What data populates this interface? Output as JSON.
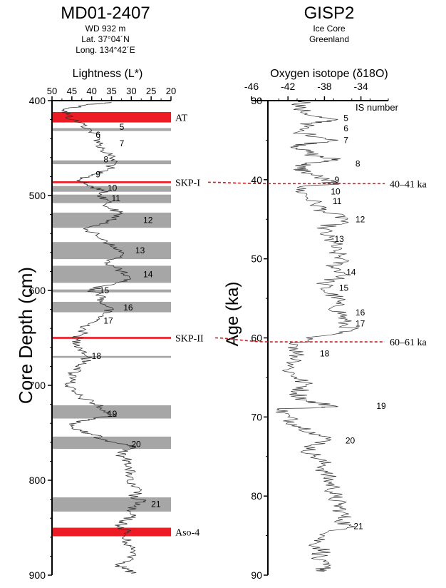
{
  "chart_data": [
    {
      "type": "line",
      "panel": "left",
      "title": "MD01-2407",
      "subtitle_lines": [
        "WD 932 m",
        "Lat. 37°04´N",
        "Long. 134°42´E"
      ],
      "xlabel": "Lightness (L*)",
      "ylabel": "Core Depth (cm)",
      "xlim": [
        50,
        20
      ],
      "ylim": [
        400,
        900
      ],
      "xticks": [
        "50",
        "45",
        "40",
        "35",
        "30",
        "25",
        "20"
      ],
      "yticks": [
        "400",
        "500",
        "600",
        "700",
        "800",
        "900"
      ],
      "ytick_values": [
        400,
        500,
        600,
        700,
        800,
        900
      ],
      "series": [
        {
          "name": "Lightness",
          "depth": [
            402,
            405,
            410,
            415,
            420,
            425,
            432,
            440,
            446,
            452,
            460,
            466,
            472,
            478,
            483,
            487,
            491,
            494,
            500,
            504,
            512,
            518,
            524,
            530,
            536,
            542,
            548,
            554,
            560,
            566,
            572,
            578,
            584,
            590,
            596,
            600,
            606,
            612,
            618,
            624,
            630,
            636,
            642,
            648,
            652,
            658,
            664,
            670,
            676,
            682,
            688,
            694,
            700,
            706,
            712,
            718,
            722,
            728,
            732,
            736,
            740,
            744,
            748,
            752,
            758,
            762,
            766,
            770,
            776,
            782,
            788,
            794,
            800,
            806,
            812,
            818,
            822,
            826,
            832,
            838,
            844,
            848,
            854,
            860,
            866,
            872,
            878,
            884,
            890,
            894,
            898
          ],
          "lightness": [
            35,
            42,
            47,
            46,
            45,
            42,
            40,
            38,
            38,
            37,
            35,
            34,
            36,
            40,
            43,
            42,
            40,
            37,
            38,
            36,
            36,
            33,
            34,
            38,
            41,
            39,
            36,
            35,
            32,
            34,
            36,
            33,
            32,
            31,
            38,
            40,
            37,
            38,
            35,
            37,
            38,
            41,
            42,
            43,
            44,
            43,
            42,
            41,
            42,
            43,
            45,
            44,
            46,
            45,
            43,
            40,
            38,
            37,
            34,
            41,
            44,
            45,
            43,
            40,
            36,
            31,
            29,
            33,
            32,
            30,
            31,
            30,
            31,
            30,
            28,
            30,
            27,
            29,
            31,
            30,
            32,
            33,
            31,
            32,
            31,
            30,
            29,
            30,
            33,
            31,
            30
          ]
        }
      ],
      "gray_bands": [
        {
          "top": 429,
          "bottom": 432
        },
        {
          "top": 463,
          "bottom": 467
        },
        {
          "top": 490,
          "bottom": 496
        },
        {
          "top": 499,
          "bottom": 508
        },
        {
          "top": 518,
          "bottom": 534
        },
        {
          "top": 549,
          "bottom": 567
        },
        {
          "top": 574,
          "bottom": 592
        },
        {
          "top": 599,
          "bottom": 602
        },
        {
          "top": 612,
          "bottom": 623
        },
        {
          "top": 669,
          "bottom": 671
        },
        {
          "top": 721,
          "bottom": 735
        },
        {
          "top": 754,
          "bottom": 767
        },
        {
          "top": 818,
          "bottom": 833
        }
      ],
      "red_bands": [
        {
          "label": "AT",
          "top": 412,
          "bottom": 423
        },
        {
          "label": "SKP-I",
          "top": 485,
          "bottom": 487
        },
        {
          "label": "SKP-II",
          "top": 649,
          "bottom": 651
        },
        {
          "label": "Aso-4",
          "top": 850,
          "bottom": 859
        }
      ],
      "is_labels": [
        {
          "n": "5",
          "depth": 428,
          "x": 33
        },
        {
          "n": "6",
          "depth": 436,
          "x": 39
        },
        {
          "n": "7",
          "depth": 445,
          "x": 33
        },
        {
          "n": "8",
          "depth": 462,
          "x": 37
        },
        {
          "n": "9",
          "depth": 478,
          "x": 39
        },
        {
          "n": "10",
          "depth": 492,
          "x": 36
        },
        {
          "n": "11",
          "depth": 503,
          "x": 35
        },
        {
          "n": "12",
          "depth": 526,
          "x": 27
        },
        {
          "n": "13",
          "depth": 558,
          "x": 29
        },
        {
          "n": "14",
          "depth": 583,
          "x": 27
        },
        {
          "n": "15",
          "depth": 600,
          "x": 38
        },
        {
          "n": "16",
          "depth": 618,
          "x": 32
        },
        {
          "n": "17",
          "depth": 632,
          "x": 37
        },
        {
          "n": "18",
          "depth": 669,
          "x": 40
        },
        {
          "n": "19",
          "depth": 730,
          "x": 36
        },
        {
          "n": "20",
          "depth": 762,
          "x": 30
        },
        {
          "n": "21",
          "depth": 825,
          "x": 25
        }
      ]
    },
    {
      "type": "line",
      "panel": "right",
      "title": "GISP2",
      "subtitle_lines": [
        "Ice Core",
        "Greenland"
      ],
      "xlabel": "Oxygen isotope (δ18O)",
      "ylabel": "Age (ka)",
      "axis_annotation": "IS number",
      "xlim": [
        -46,
        -31
      ],
      "ylim": [
        30,
        90
      ],
      "xticks": [
        "-46",
        "-42",
        "-38",
        "-34"
      ],
      "xtick_values": [
        -46,
        -42,
        -38,
        -34
      ],
      "yticks": [
        "30",
        "40",
        "50",
        "60",
        "70",
        "80",
        "90"
      ],
      "ytick_values": [
        30,
        40,
        50,
        60,
        70,
        80,
        90
      ],
      "series": [
        {
          "name": "δ18O",
          "age": [
            30,
            31,
            32,
            32.5,
            33,
            34,
            35,
            35.5,
            36,
            37,
            37.5,
            38,
            38.5,
            39,
            40,
            40.5,
            41,
            42,
            43,
            44,
            45,
            46,
            47,
            48,
            49,
            50,
            51,
            52,
            53,
            54,
            55,
            56,
            57,
            58,
            59,
            60,
            61,
            62,
            63,
            64,
            65,
            66,
            67,
            68,
            68.7,
            69,
            70,
            71,
            72,
            73,
            74,
            75,
            76,
            77,
            78,
            79,
            80,
            81,
            82,
            83,
            84,
            85,
            86,
            87,
            88,
            89,
            89.5
          ],
          "d18O": [
            -40,
            -41,
            -39,
            -37,
            -40,
            -41,
            -36.5,
            -40,
            -41,
            -39,
            -36.5,
            -40,
            -41,
            -40,
            -38,
            -37,
            -41,
            -40,
            -39,
            -38,
            -35.5,
            -38,
            -38,
            -37,
            -37,
            -36,
            -37,
            -35.5,
            -38,
            -38,
            -36.5,
            -37,
            -36,
            -36,
            -35,
            -40,
            -41,
            -41,
            -41,
            -42,
            -41,
            -40,
            -41,
            -40,
            -36.5,
            -43,
            -42,
            -41,
            -39,
            -37.5,
            -40,
            -39,
            -38,
            -38,
            -37.5,
            -37,
            -37,
            -36.5,
            -36,
            -36,
            -35.5,
            -38,
            -39,
            -38,
            -39,
            -38,
            -38
          ]
        }
      ],
      "is_labels": [
        {
          "n": "5",
          "age": 32.2,
          "x": -35.9
        },
        {
          "n": "6",
          "age": 33.5,
          "x": -35.9
        },
        {
          "n": "7",
          "age": 35.0,
          "x": -35.9
        },
        {
          "n": "8",
          "age": 38.0,
          "x": -34.6
        },
        {
          "n": "9",
          "age": 40.0,
          "x": -36.9
        },
        {
          "n": "10",
          "age": 41.5,
          "x": -37.3
        },
        {
          "n": "11",
          "age": 42.7,
          "x": -37.1
        },
        {
          "n": "12",
          "age": 45.0,
          "x": -34.6
        },
        {
          "n": "13",
          "age": 47.5,
          "x": -36.9
        },
        {
          "n": "14",
          "age": 51.7,
          "x": -35.6
        },
        {
          "n": "15",
          "age": 53.7,
          "x": -36.4
        },
        {
          "n": "16",
          "age": 56.8,
          "x": -34.6
        },
        {
          "n": "17",
          "age": 58.2,
          "x": -34.6
        },
        {
          "n": "18",
          "age": 62.0,
          "x": -38.5
        },
        {
          "n": "19",
          "age": 68.6,
          "x": -32.3
        },
        {
          "n": "20",
          "age": 73.0,
          "x": -35.7
        },
        {
          "n": "21",
          "age": 83.8,
          "x": -34.8
        }
      ],
      "tie_points": [
        {
          "from": "SKP-I",
          "depth": 486,
          "age": 40.5,
          "label": "40–41 ka"
        },
        {
          "from": "SKP-II",
          "depth": 650,
          "age": 60.5,
          "label": "60–61 ka"
        }
      ]
    }
  ]
}
